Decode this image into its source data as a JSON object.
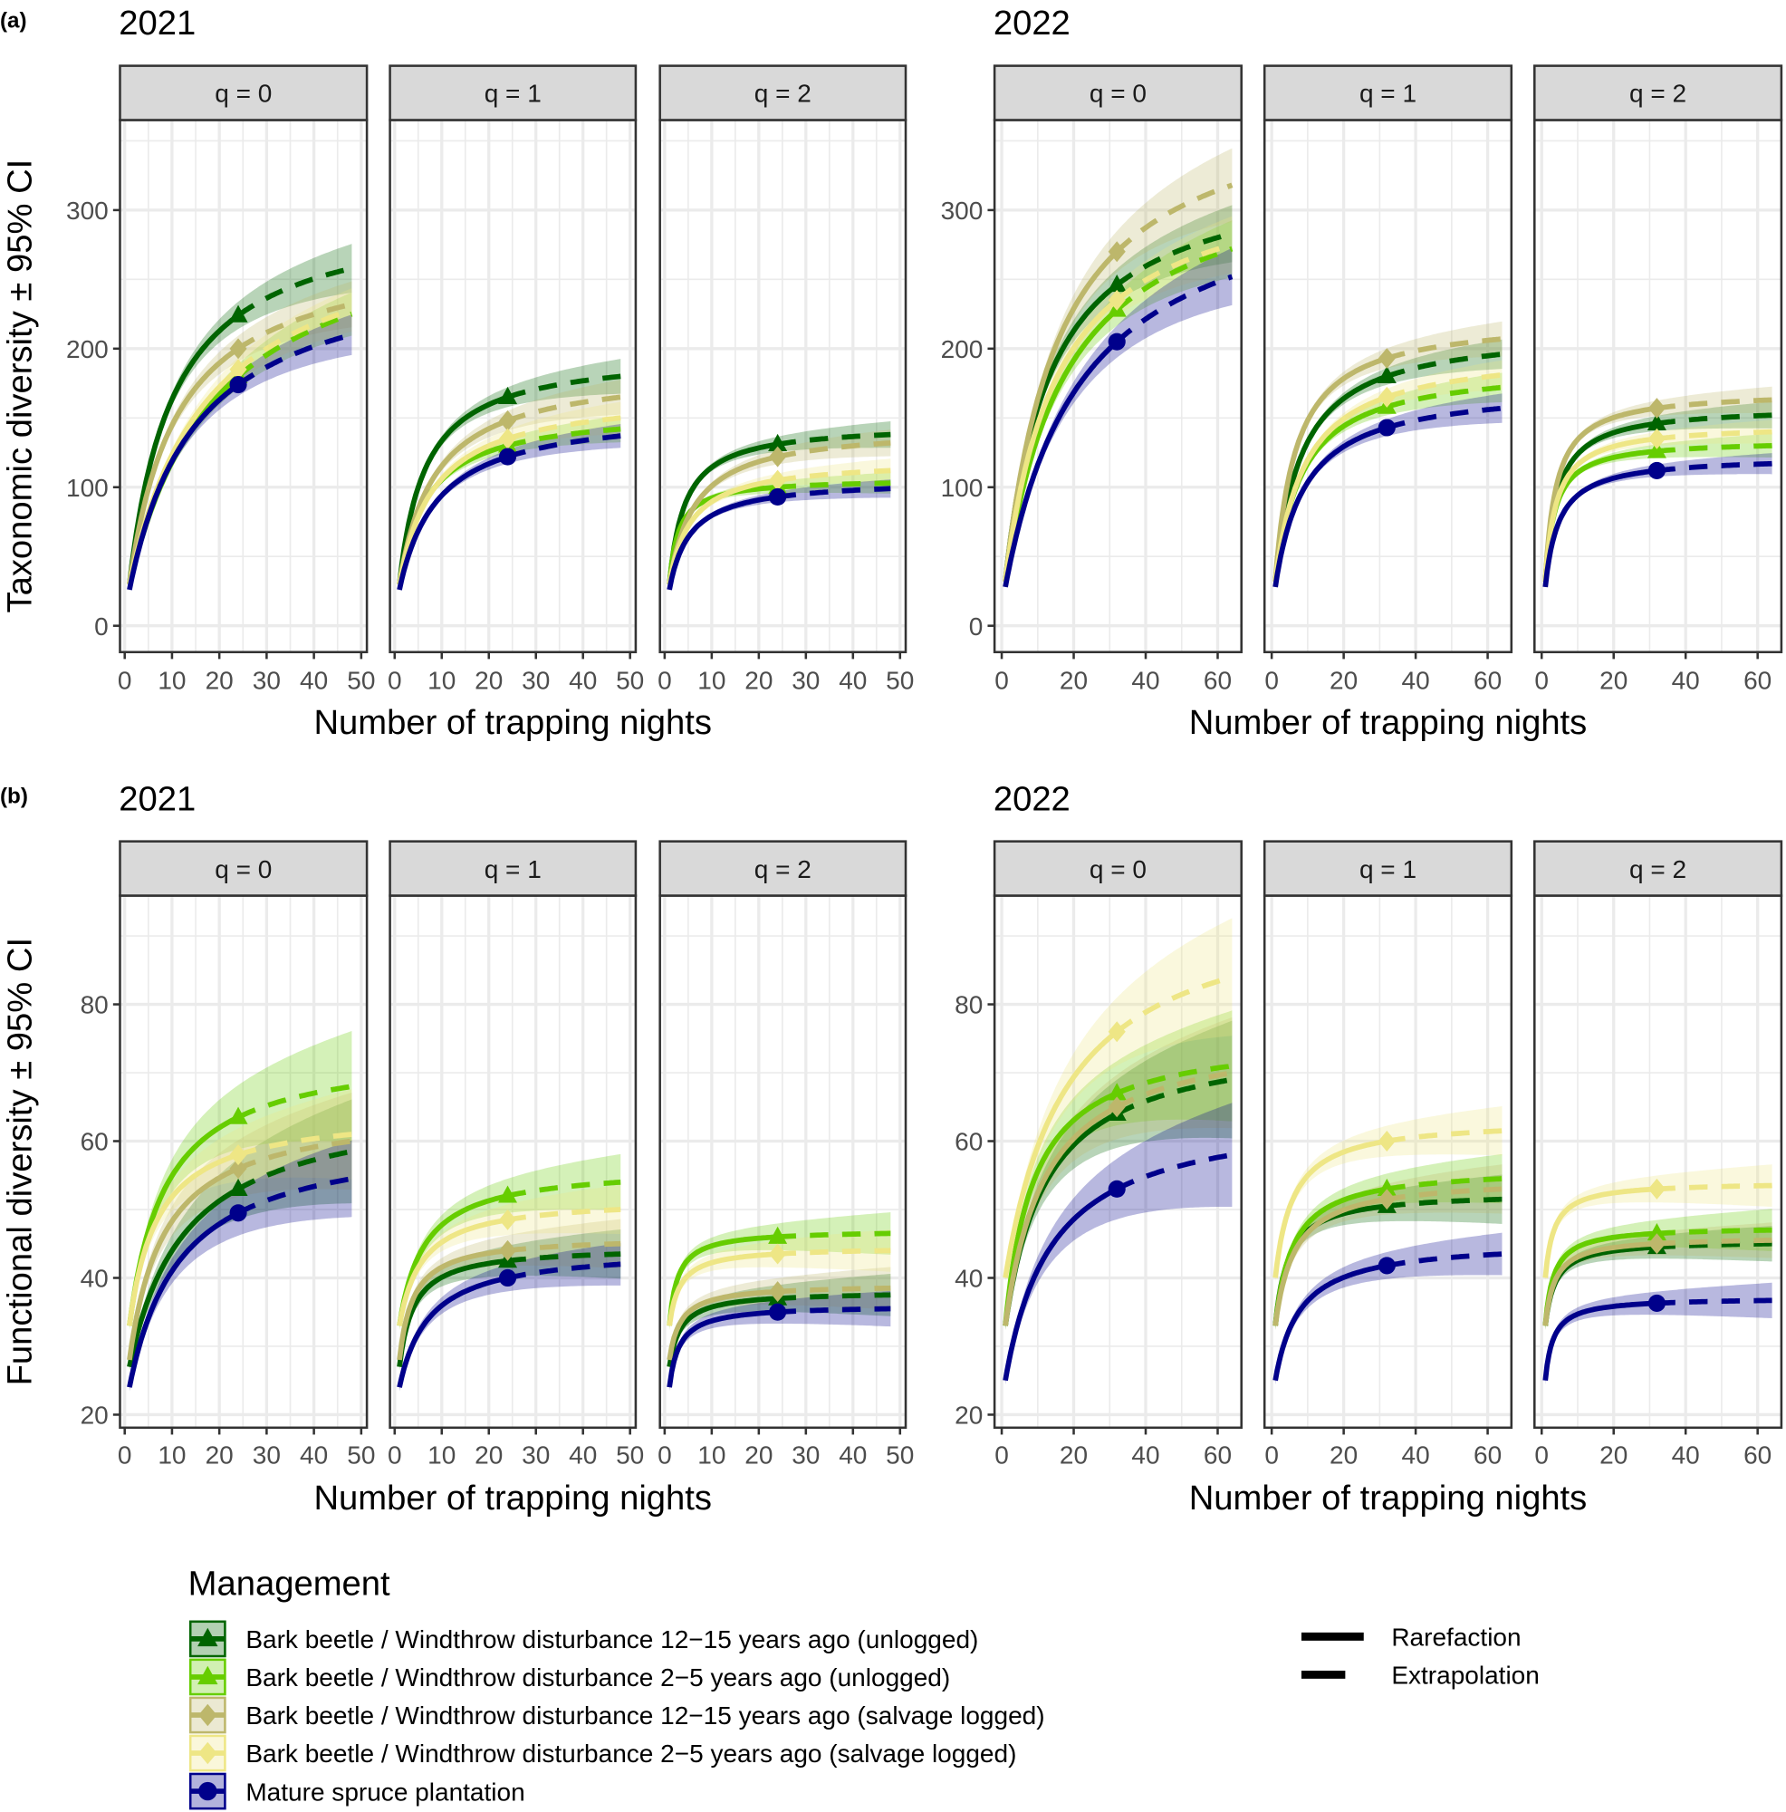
{
  "legend": {
    "title": "Management",
    "items": [
      {
        "label": "Bark beetle / Windthrow disturbance 12−15 years ago (unlogged)",
        "color": "#006400",
        "shape": "triangle"
      },
      {
        "label": "Bark beetle / Windthrow disturbance 2−5 years ago (unlogged)",
        "color": "#66cd00",
        "shape": "triangle"
      },
      {
        "label": "Bark beetle / Windthrow disturbance 12−15 years ago (salvage logged)",
        "color": "#bdb76b",
        "shape": "diamond"
      },
      {
        "label": "Bark beetle / Windthrow disturbance 2−5 years ago (salvage logged)",
        "color": "#eee685",
        "shape": "diamond"
      },
      {
        "label": "Mature spruce plantation",
        "color": "#00008b",
        "shape": "circle"
      }
    ],
    "linetypes": [
      {
        "label": "Rarefaction",
        "style": "solid"
      },
      {
        "label": "Extrapolation",
        "style": "dashed"
      }
    ]
  },
  "chart_data": [
    {
      "panel_label": "(a)",
      "type": "line",
      "ylabel": "Taxonomic diversity ± 95% CI",
      "xlabel": "Number of trapping nights",
      "ylim": [
        -19,
        365
      ],
      "yticks": [
        "0",
        "100",
        "200",
        "300"
      ],
      "ytick_values": [
        0,
        100,
        200,
        300
      ],
      "yminor": [
        50,
        150,
        250,
        350
      ],
      "value_fields": [
        "start_at_1_night",
        "observed",
        "extrapolated_end",
        "ci_halfwidth_at_end"
      ],
      "years": [
        {
          "title": "2021",
          "xlim": [
            -1,
            51.2
          ],
          "xticks": [
            "0",
            "10",
            "20",
            "30",
            "40",
            "50"
          ],
          "xtick_values": [
            0,
            10,
            20,
            30,
            40,
            50
          ],
          "xminor": [
            5,
            15,
            25,
            35,
            45
          ],
          "x_observed": 24,
          "x_end": 48,
          "panels": [
            {
              "strip": "q = 0",
              "values": [
                [
                  30,
                  224,
                  258,
                  17
                ],
                [
                  30,
                  180,
                  225,
                  15
                ],
                [
                  30,
                  200,
                  232,
                  16
                ],
                [
                  30,
                  185,
                  228,
                  15
                ],
                [
                  26,
                  174,
                  210,
                  14
                ]
              ]
            },
            {
              "strip": "q = 1",
              "values": [
                [
                  30,
                  165,
                  180,
                  12
                ],
                [
                  30,
                  130,
                  142,
                  9
                ],
                [
                  30,
                  148,
                  165,
                  12
                ],
                [
                  30,
                  135,
                  150,
                  11
                ],
                [
                  26,
                  122,
                  137,
                  8
                ]
              ]
            },
            {
              "strip": "q = 2",
              "values": [
                [
                  30,
                  131,
                  138,
                  9
                ],
                [
                  30,
                  100,
                  103,
                  7
                ],
                [
                  30,
                  122,
                  132,
                  9
                ],
                [
                  30,
                  105,
                  112,
                  8
                ],
                [
                  26,
                  93,
                  99,
                  6
                ]
              ]
            }
          ]
        },
        {
          "title": "2022",
          "xlim": [
            -2,
            66.6
          ],
          "xticks": [
            "0",
            "20",
            "40",
            "60"
          ],
          "xtick_values": [
            0,
            20,
            40,
            60
          ],
          "xminor": [
            10,
            30,
            50
          ],
          "x_observed": 32,
          "x_end": 64,
          "panels": [
            {
              "strip": "q = 0",
              "values": [
                [
                  32,
                  246,
                  283,
                  20
                ],
                [
                  32,
                  228,
                  272,
                  20
                ],
                [
                  32,
                  270,
                  318,
                  26
                ],
                [
                  32,
                  235,
                  275,
                  20
                ],
                [
                  28,
                  205,
                  252,
                  20
                ]
              ]
            },
            {
              "strip": "q = 1",
              "values": [
                [
                  32,
                  180,
                  196,
                  10
                ],
                [
                  32,
                  158,
                  172,
                  10
                ],
                [
                  32,
                  193,
                  207,
                  12
                ],
                [
                  32,
                  165,
                  181,
                  10
                ],
                [
                  28,
                  143,
                  157,
                  10
                ]
              ]
            },
            {
              "strip": "q = 2",
              "values": [
                [
                  32,
                  146,
                  152,
                  9
                ],
                [
                  32,
                  126,
                  130,
                  8
                ],
                [
                  32,
                  157,
                  163,
                  9
                ],
                [
                  32,
                  135,
                  140,
                  8
                ],
                [
                  28,
                  112,
                  117,
                  7
                ]
              ]
            }
          ]
        }
      ]
    },
    {
      "panel_label": "(b)",
      "type": "line",
      "ylabel": "Functional diversity ± 95% CI",
      "xlabel": "Number of trapping nights",
      "ylim": [
        18.1,
        95.9
      ],
      "yticks": [
        "20",
        "40",
        "60",
        "80"
      ],
      "ytick_values": [
        20,
        40,
        60,
        80
      ],
      "yminor": [
        30,
        50,
        70,
        90
      ],
      "value_fields": [
        "start_at_1_night",
        "observed",
        "extrapolated_end",
        "ci_halfwidth_at_end"
      ],
      "years": [
        {
          "title": "2021",
          "xlim": [
            -1,
            51.2
          ],
          "xticks": [
            "0",
            "10",
            "20",
            "30",
            "40",
            "50"
          ],
          "xtick_values": [
            0,
            10,
            20,
            30,
            40,
            50
          ],
          "xminor": [
            5,
            15,
            25,
            35,
            45
          ],
          "x_observed": 24,
          "x_end": 48,
          "panels": [
            {
              "strip": "q = 0",
              "values": [
                [
                  27,
                  53,
                  58.5,
                  7
                ],
                [
                  33,
                  63.5,
                  68,
                  7.5
                ],
                [
                  28,
                  56,
                  60,
                  6.5
                ],
                [
                  33,
                  58,
                  61,
                  6
                ],
                [
                  24,
                  49.5,
                  54.5,
                  5
                ]
              ]
            },
            {
              "strip": "q = 1",
              "values": [
                [
                  27,
                  42.5,
                  43.5,
                  3
                ],
                [
                  33,
                  52,
                  54,
                  3.5
                ],
                [
                  28,
                  44,
                  45,
                  3
                ],
                [
                  33,
                  48.5,
                  50,
                  3
                ],
                [
                  24,
                  40,
                  42,
                  2.5
                ]
              ]
            },
            {
              "strip": "q = 2",
              "values": [
                [
                  27,
                  37,
                  37.5,
                  2.5
                ],
                [
                  33,
                  46,
                  46.5,
                  2.5
                ],
                [
                  28,
                  38,
                  38.5,
                  2.5
                ],
                [
                  33,
                  43.5,
                  44,
                  2.5
                ],
                [
                  24,
                  35,
                  35.5,
                  2
                ]
              ]
            }
          ]
        },
        {
          "title": "2022",
          "xlim": [
            -2,
            66.6
          ],
          "xticks": [
            "0",
            "20",
            "40",
            "60"
          ],
          "xtick_values": [
            0,
            20,
            40,
            60
          ],
          "xminor": [
            10,
            30,
            50
          ],
          "x_observed": 32,
          "x_end": 64,
          "panels": [
            {
              "strip": "q = 0",
              "values": [
                [
                  33,
                  64,
                  69,
                  8
                ],
                [
                  33,
                  67,
                  71,
                  7.5
                ],
                [
                  33,
                  65,
                  70,
                  7.5
                ],
                [
                  40,
                  76,
                  84,
                  8
                ],
                [
                  25,
                  53,
                  58,
                  7
                ]
              ]
            },
            {
              "strip": "q = 1",
              "values": [
                [
                  33,
                  50.5,
                  51.5,
                  3
                ],
                [
                  33,
                  53,
                  54.5,
                  3
                ],
                [
                  33,
                  51.5,
                  53,
                  3
                ],
                [
                  40,
                  60,
                  61.5,
                  3
                ],
                [
                  25,
                  41.8,
                  43.5,
                  2.5
                ]
              ]
            },
            {
              "strip": "q = 2",
              "values": [
                [
                  33,
                  44.5,
                  45,
                  2
                ],
                [
                  33,
                  46.5,
                  47,
                  2.5
                ],
                [
                  33,
                  45,
                  45.5,
                  2
                ],
                [
                  40,
                  53,
                  53.5,
                  2.5
                ],
                [
                  25,
                  36.3,
                  36.7,
                  2
                ]
              ]
            }
          ]
        }
      ]
    }
  ]
}
